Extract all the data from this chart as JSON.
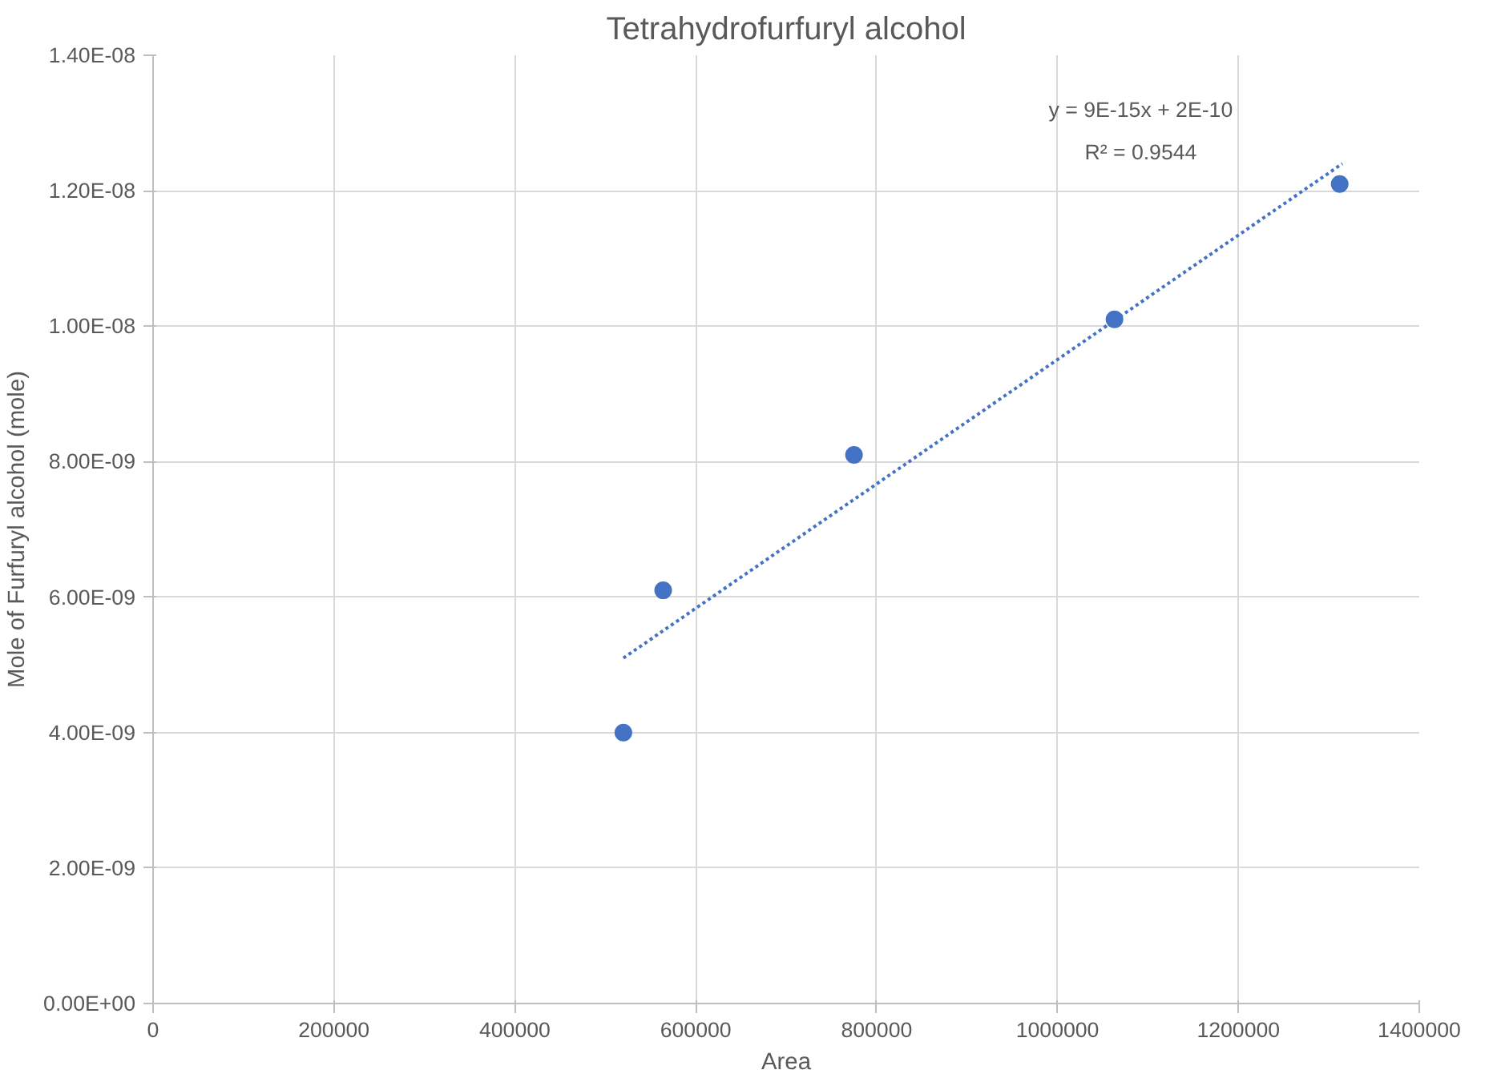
{
  "chart_data": {
    "type": "scatter",
    "title": "Tetrahydrofurfuryl alcohol",
    "xlabel": "Area",
    "ylabel": "Mole of Furfuryl alcohol (mole)",
    "annotations": [
      "y = 9E-15x + 2E-10",
      "R² = 0.9544"
    ],
    "xlim": [
      0,
      1400000
    ],
    "xticks": [
      0,
      200000,
      400000,
      600000,
      800000,
      1000000,
      1200000,
      1400000
    ],
    "ylim": [
      0,
      1.4e-08
    ],
    "yticks": [
      {
        "value": 0,
        "label": "0.00E+00"
      },
      {
        "value": 2e-09,
        "label": "2.00E-09"
      },
      {
        "value": 4e-09,
        "label": "4.00E-09"
      },
      {
        "value": 6e-09,
        "label": "6.00E-09"
      },
      {
        "value": 8e-09,
        "label": "8.00E-09"
      },
      {
        "value": 1e-08,
        "label": "1.00E-08"
      },
      {
        "value": 1.2e-08,
        "label": "1.20E-08"
      },
      {
        "value": 1.4e-08,
        "label": "1.40E-08"
      }
    ],
    "grid": true,
    "series": [
      {
        "color": "#4472c4",
        "marker": "circle",
        "x": [
          520000,
          564000,
          775000,
          1063000,
          1312000
        ],
        "values": [
          4e-09,
          6.1e-09,
          8.1e-09,
          1.01e-08,
          1.21e-08
        ]
      },
      {
        "type": "line",
        "color": "#4472c4",
        "marker": "none",
        "line_style": "dotted",
        "x": [
          520000,
          1315000
        ],
        "values": [
          5.1e-09,
          1.24e-08
        ]
      }
    ]
  }
}
